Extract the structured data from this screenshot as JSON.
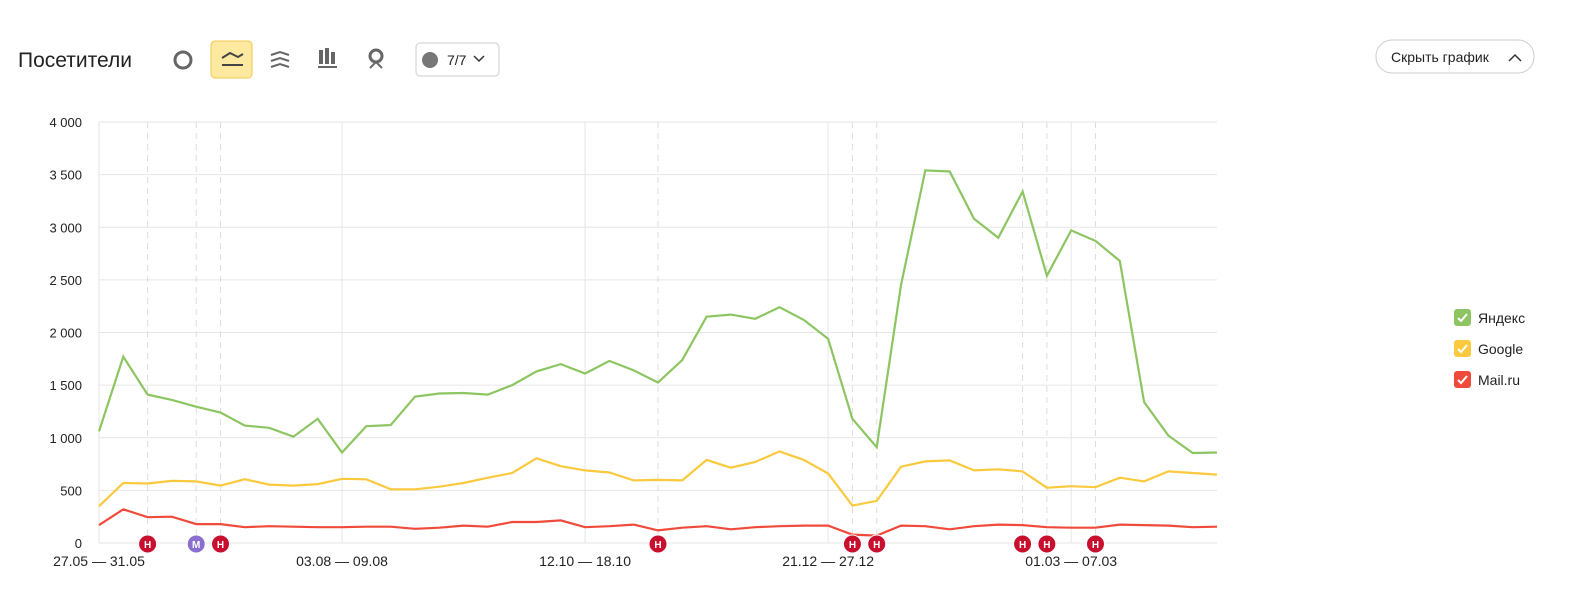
{
  "header": {
    "title": "Посетители",
    "filter_label": "7/7",
    "hide_button": "Скрыть график"
  },
  "chart_data": {
    "type": "line",
    "categories": [
      "27.05 — 31.05",
      null,
      null,
      null,
      null,
      null,
      null,
      null,
      null,
      null,
      "03.08 — 09.08",
      null,
      null,
      null,
      null,
      null,
      null,
      null,
      null,
      null,
      "12.10 — 18.10",
      null,
      null,
      null,
      null,
      null,
      null,
      null,
      null,
      null,
      "21.12 — 27.12",
      null,
      null,
      null,
      null,
      null,
      null,
      null,
      null,
      null,
      "01.03 — 07.03",
      null,
      null,
      null,
      null,
      null,
      null
    ],
    "series": [
      {
        "name": "Яндекс",
        "color": "#8cc561",
        "values": [
          1060,
          1770,
          1410,
          1360,
          1295,
          1240,
          1115,
          1095,
          1010,
          1180,
          860,
          1110,
          1120,
          1390,
          1420,
          1425,
          1410,
          1500,
          1630,
          1700,
          1610,
          1730,
          1640,
          1525,
          1740,
          2150,
          2170,
          2130,
          2240,
          2120,
          1940,
          1180,
          910,
          2450,
          3540,
          3530,
          3080,
          2900,
          3340,
          2540,
          2970,
          2870,
          2680,
          1340,
          1020,
          855,
          860
        ]
      },
      {
        "name": "Google",
        "color": "#fbc93d",
        "values": [
          350,
          570,
          565,
          590,
          585,
          545,
          605,
          555,
          545,
          560,
          610,
          605,
          510,
          510,
          535,
          570,
          620,
          665,
          805,
          730,
          690,
          670,
          595,
          600,
          595,
          790,
          715,
          770,
          870,
          790,
          660,
          355,
          400,
          725,
          775,
          785,
          690,
          700,
          680,
          525,
          540,
          530,
          620,
          585,
          680,
          665,
          650
        ]
      },
      {
        "name": "Mail.ru",
        "color": "#f04b3a",
        "values": [
          170,
          320,
          245,
          250,
          180,
          180,
          150,
          160,
          155,
          150,
          150,
          155,
          155,
          135,
          145,
          165,
          155,
          200,
          200,
          215,
          150,
          160,
          175,
          120,
          145,
          160,
          130,
          150,
          160,
          165,
          165,
          80,
          70,
          165,
          160,
          130,
          160,
          175,
          170,
          150,
          145,
          145,
          175,
          170,
          165,
          150,
          155
        ]
      }
    ],
    "ylim": [
      0,
      4000
    ],
    "yticks": [
      0,
      500,
      {
        "value": 1000,
        "label": "1 000"
      },
      {
        "value": 1500,
        "label": "1 500"
      },
      {
        "value": 2000,
        "label": "2 000"
      },
      {
        "value": 2500,
        "label": "2 500"
      },
      {
        "value": 3000,
        "label": "3 000"
      },
      {
        "value": 3500,
        "label": "3 500"
      },
      {
        "value": 4000,
        "label": "4 000"
      }
    ],
    "grid": true,
    "legend": "right",
    "markers": [
      {
        "x": 2,
        "label": "Н",
        "color": "#c8102e"
      },
      {
        "x": 4,
        "label": "М",
        "color": "#8a6fd1"
      },
      {
        "x": 5,
        "label": "Н",
        "color": "#c8102e"
      },
      {
        "x": 23,
        "label": "Н",
        "color": "#c8102e"
      },
      {
        "x": 31,
        "label": "Н",
        "color": "#c8102e"
      },
      {
        "x": 32,
        "label": "Н",
        "color": "#c8102e"
      },
      {
        "x": 38,
        "label": "Н",
        "color": "#c8102e"
      },
      {
        "x": 39,
        "label": "Н",
        "color": "#c8102e"
      },
      {
        "x": 41,
        "label": "Н",
        "color": "#c8102e"
      }
    ]
  }
}
